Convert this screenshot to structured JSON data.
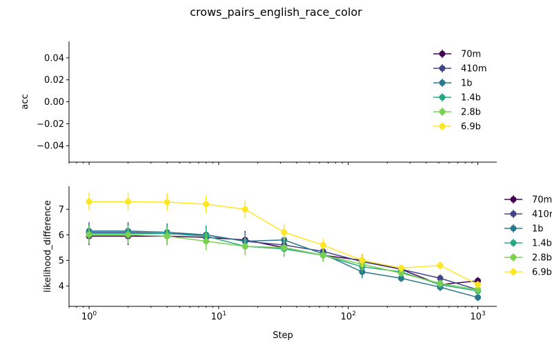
{
  "figure": {
    "suptitle": "crows_pairs_english_race_color"
  },
  "chart_data": [
    {
      "type": "line",
      "title": "",
      "xlabel": "",
      "ylabel": "acc",
      "xscale": "log",
      "xlim": [
        0.7,
        1400
      ],
      "ylim": [
        -0.055,
        0.055
      ],
      "yticks": [
        "0.04",
        "0.02",
        "0.00",
        "−0.02",
        "−0.04"
      ],
      "ytick_values": [
        0.04,
        0.02,
        0.0,
        -0.02,
        -0.04
      ],
      "xtick_labels_shown": false,
      "grid": false,
      "legend_position": "upper-right",
      "series": [
        {
          "name": "70m",
          "color": "#440154",
          "x": [],
          "y": [],
          "err": []
        },
        {
          "name": "410m",
          "color": "#414487",
          "x": [],
          "y": [],
          "err": []
        },
        {
          "name": "1b",
          "color": "#2a788e",
          "x": [],
          "y": [],
          "err": []
        },
        {
          "name": "1.4b",
          "color": "#22a884",
          "x": [],
          "y": [],
          "err": []
        },
        {
          "name": "2.8b",
          "color": "#7ad151",
          "x": [],
          "y": [],
          "err": []
        },
        {
          "name": "6.9b",
          "color": "#fde725",
          "x": [],
          "y": [],
          "err": []
        }
      ]
    },
    {
      "type": "line",
      "title": "",
      "xlabel": "Step",
      "ylabel": "likelihood_difference",
      "xscale": "log",
      "xlim": [
        0.7,
        1400
      ],
      "ylim": [
        3.2,
        7.9
      ],
      "yticks": [
        "7",
        "6",
        "5",
        "4"
      ],
      "ytick_values": [
        7,
        6,
        5,
        4
      ],
      "xtick_values": [
        1,
        10,
        100,
        1000
      ],
      "xtick_labels": [
        "10",
        "10",
        "10",
        "10"
      ],
      "xtick_exponents": [
        "0",
        "1",
        "2",
        "3"
      ],
      "grid": false,
      "legend_position": "outside-right",
      "series": [
        {
          "name": "70m",
          "color": "#440154",
          "x": [
            1,
            2,
            4,
            8,
            16,
            32,
            64,
            128,
            256,
            512,
            1000
          ],
          "y": [
            5.95,
            5.95,
            5.95,
            5.9,
            5.8,
            5.5,
            5.2,
            5.0,
            4.65,
            4.05,
            4.2
          ],
          "err": [
            0.35,
            0.35,
            0.35,
            0.35,
            0.35,
            0.3,
            0.25,
            0.25,
            0.15,
            0.15,
            0.15
          ]
        },
        {
          "name": "410m",
          "color": "#414487",
          "x": [
            1,
            2,
            4,
            8,
            16,
            32,
            64,
            128,
            256,
            512,
            1000
          ],
          "y": [
            6.1,
            6.1,
            6.05,
            6.0,
            5.75,
            5.6,
            5.35,
            4.95,
            4.65,
            4.3,
            3.85
          ],
          "err": [
            0.35,
            0.35,
            0.35,
            0.35,
            0.35,
            0.3,
            0.25,
            0.25,
            0.15,
            0.15,
            0.15
          ]
        },
        {
          "name": "1b",
          "color": "#2a788e",
          "x": [
            1,
            2,
            4,
            8,
            16,
            32,
            64,
            128,
            256,
            512,
            1000
          ],
          "y": [
            6.15,
            6.15,
            6.1,
            6.0,
            5.75,
            5.8,
            5.25,
            4.55,
            4.3,
            3.95,
            3.55
          ],
          "err": [
            0.35,
            0.35,
            0.35,
            0.35,
            0.35,
            0.3,
            0.25,
            0.25,
            0.15,
            0.15,
            0.15
          ]
        },
        {
          "name": "1.4b",
          "color": "#22a884",
          "x": [
            1,
            2,
            4,
            8,
            16,
            32,
            64,
            128,
            256,
            512,
            1000
          ],
          "y": [
            6.05,
            6.05,
            6.05,
            5.95,
            5.55,
            5.45,
            5.2,
            4.75,
            4.55,
            4.05,
            3.8
          ],
          "err": [
            0.35,
            0.35,
            0.35,
            0.35,
            0.35,
            0.3,
            0.25,
            0.25,
            0.15,
            0.15,
            0.15
          ]
        },
        {
          "name": "2.8b",
          "color": "#7ad151",
          "x": [
            1,
            2,
            4,
            8,
            16,
            32,
            64,
            128,
            256,
            512,
            1000
          ],
          "y": [
            6.0,
            6.0,
            5.95,
            5.75,
            5.55,
            5.5,
            5.2,
            4.85,
            4.5,
            4.1,
            3.85
          ],
          "err": [
            0.35,
            0.35,
            0.35,
            0.35,
            0.35,
            0.3,
            0.25,
            0.25,
            0.15,
            0.15,
            0.15
          ]
        },
        {
          "name": "6.9b",
          "color": "#fde725",
          "x": [
            1,
            2,
            4,
            8,
            16,
            32,
            64,
            128,
            256,
            512,
            1000
          ],
          "y": [
            7.3,
            7.3,
            7.28,
            7.2,
            7.0,
            6.1,
            5.6,
            5.0,
            4.7,
            4.8,
            4.05
          ],
          "err": [
            0.35,
            0.35,
            0.35,
            0.35,
            0.35,
            0.3,
            0.25,
            0.25,
            0.15,
            0.15,
            0.15
          ]
        }
      ]
    }
  ]
}
